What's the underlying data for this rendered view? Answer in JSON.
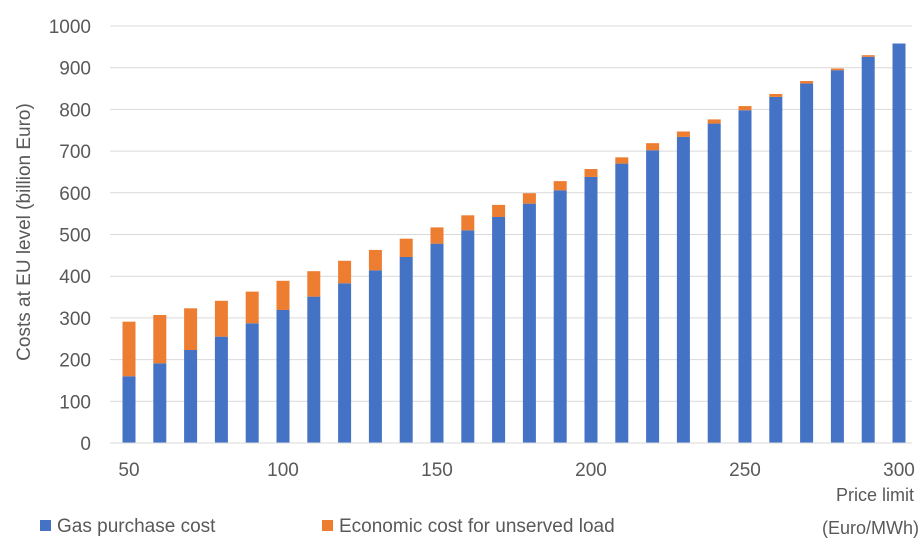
{
  "chart_data": {
    "type": "bar",
    "stacked": true,
    "categories": [
      50,
      60,
      70,
      80,
      90,
      100,
      110,
      120,
      130,
      140,
      150,
      160,
      170,
      180,
      190,
      200,
      210,
      220,
      230,
      240,
      250,
      260,
      270,
      280,
      290,
      300
    ],
    "series": [
      {
        "name": "Gas purchase cost",
        "color": "#4472C4",
        "values": [
          160,
          191,
          223,
          255,
          287,
          319,
          351,
          383,
          414,
          446,
          478,
          510,
          542,
          574,
          606,
          638,
          670,
          702,
          734,
          766,
          798,
          830,
          862,
          894,
          926,
          958
        ]
      },
      {
        "name": "Economic cost for unserved load",
        "color": "#ED7D31",
        "values": [
          131,
          116,
          100,
          86,
          76,
          70,
          61,
          54,
          49,
          44,
          39,
          36,
          29,
          25,
          22,
          19,
          15,
          17,
          13,
          10,
          10,
          7,
          6,
          4,
          4,
          0
        ]
      }
    ],
    "ylabel": "Costs at EU level  (billion Euro)",
    "xlabel": "Price limit (Euro/MWh)",
    "xlabel_lines": [
      "Price limit",
      "(Euro/MWh)"
    ],
    "ylim": [
      0,
      1000
    ],
    "yticks": [
      0,
      100,
      200,
      300,
      400,
      500,
      600,
      700,
      800,
      900,
      1000
    ],
    "xticks": [
      50,
      100,
      150,
      200,
      250,
      300
    ],
    "grid": "horizontal",
    "legend_position": "bottom-left"
  }
}
